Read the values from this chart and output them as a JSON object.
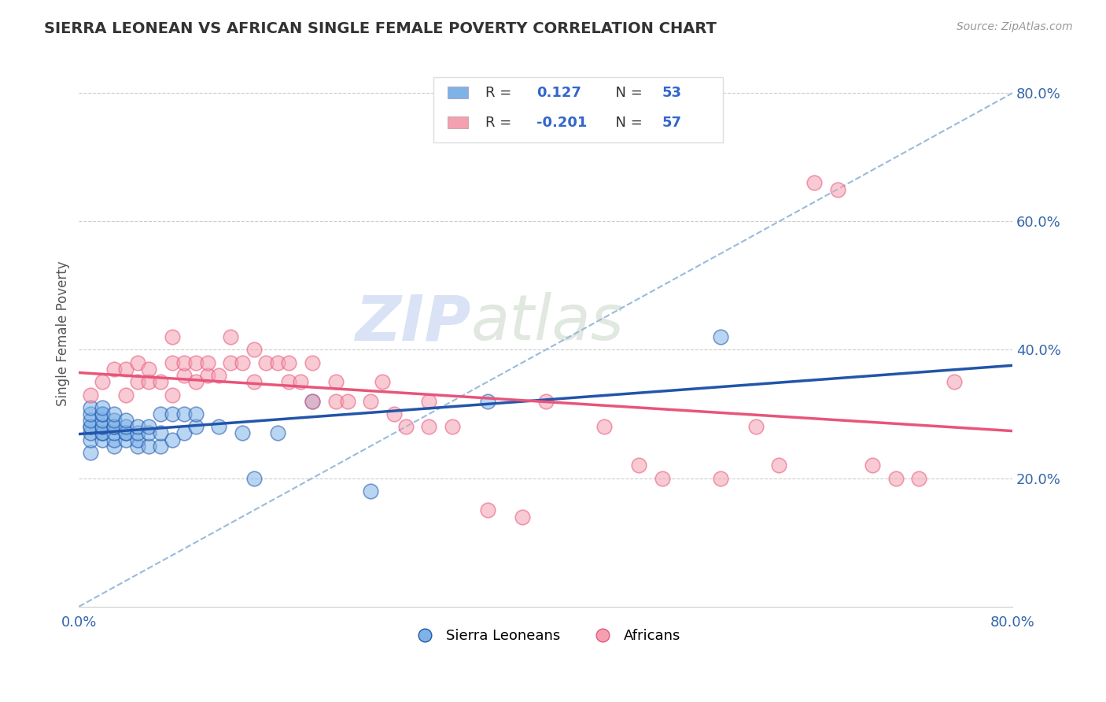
{
  "title": "SIERRA LEONEAN VS AFRICAN SINGLE FEMALE POVERTY CORRELATION CHART",
  "source_text": "Source: ZipAtlas.com",
  "ylabel": "Single Female Poverty",
  "xlim": [
    0.0,
    0.8
  ],
  "ylim": [
    0.0,
    0.85
  ],
  "y_ticks_right": [
    0.2,
    0.4,
    0.6,
    0.8
  ],
  "y_tick_labels_right": [
    "20.0%",
    "40.0%",
    "60.0%",
    "80.0%"
  ],
  "r_blue": 0.127,
  "n_blue": 53,
  "r_pink": -0.201,
  "n_pink": 57,
  "blue_color": "#7EB3E8",
  "pink_color": "#F4A0B0",
  "blue_line_color": "#2255AA",
  "pink_line_color": "#E8557A",
  "dashed_line_color": "#99BBDD",
  "legend_label_blue": "Sierra Leoneans",
  "legend_label_pink": "Africans",
  "blue_scatter_x": [
    0.01,
    0.01,
    0.01,
    0.01,
    0.01,
    0.01,
    0.01,
    0.01,
    0.02,
    0.02,
    0.02,
    0.02,
    0.02,
    0.02,
    0.02,
    0.02,
    0.02,
    0.03,
    0.03,
    0.03,
    0.03,
    0.03,
    0.03,
    0.03,
    0.04,
    0.04,
    0.04,
    0.04,
    0.04,
    0.05,
    0.05,
    0.05,
    0.05,
    0.06,
    0.06,
    0.06,
    0.07,
    0.07,
    0.07,
    0.08,
    0.08,
    0.09,
    0.09,
    0.1,
    0.1,
    0.12,
    0.14,
    0.15,
    0.17,
    0.2,
    0.25,
    0.35,
    0.55
  ],
  "blue_scatter_y": [
    0.24,
    0.26,
    0.27,
    0.28,
    0.28,
    0.29,
    0.3,
    0.31,
    0.26,
    0.27,
    0.27,
    0.28,
    0.28,
    0.29,
    0.3,
    0.3,
    0.31,
    0.25,
    0.26,
    0.27,
    0.28,
    0.28,
    0.29,
    0.3,
    0.26,
    0.27,
    0.27,
    0.28,
    0.29,
    0.25,
    0.26,
    0.27,
    0.28,
    0.25,
    0.27,
    0.28,
    0.25,
    0.27,
    0.3,
    0.26,
    0.3,
    0.27,
    0.3,
    0.28,
    0.3,
    0.28,
    0.27,
    0.2,
    0.27,
    0.32,
    0.18,
    0.32,
    0.42
  ],
  "pink_scatter_x": [
    0.01,
    0.02,
    0.03,
    0.04,
    0.04,
    0.05,
    0.05,
    0.06,
    0.06,
    0.07,
    0.08,
    0.08,
    0.08,
    0.09,
    0.09,
    0.1,
    0.1,
    0.11,
    0.11,
    0.12,
    0.13,
    0.13,
    0.14,
    0.15,
    0.15,
    0.16,
    0.17,
    0.18,
    0.18,
    0.19,
    0.2,
    0.2,
    0.22,
    0.22,
    0.23,
    0.25,
    0.26,
    0.27,
    0.28,
    0.3,
    0.3,
    0.32,
    0.35,
    0.38,
    0.4,
    0.45,
    0.48,
    0.5,
    0.55,
    0.58,
    0.6,
    0.63,
    0.65,
    0.68,
    0.7,
    0.72,
    0.75
  ],
  "pink_scatter_y": [
    0.33,
    0.35,
    0.37,
    0.33,
    0.37,
    0.38,
    0.35,
    0.35,
    0.37,
    0.35,
    0.33,
    0.38,
    0.42,
    0.36,
    0.38,
    0.35,
    0.38,
    0.36,
    0.38,
    0.36,
    0.38,
    0.42,
    0.38,
    0.35,
    0.4,
    0.38,
    0.38,
    0.35,
    0.38,
    0.35,
    0.32,
    0.38,
    0.32,
    0.35,
    0.32,
    0.32,
    0.35,
    0.3,
    0.28,
    0.28,
    0.32,
    0.28,
    0.15,
    0.14,
    0.32,
    0.28,
    0.22,
    0.2,
    0.2,
    0.28,
    0.22,
    0.66,
    0.65,
    0.22,
    0.2,
    0.2,
    0.35
  ],
  "watermark_zip_color": "#C8D8F0",
  "watermark_atlas_color": "#D0D8C0"
}
